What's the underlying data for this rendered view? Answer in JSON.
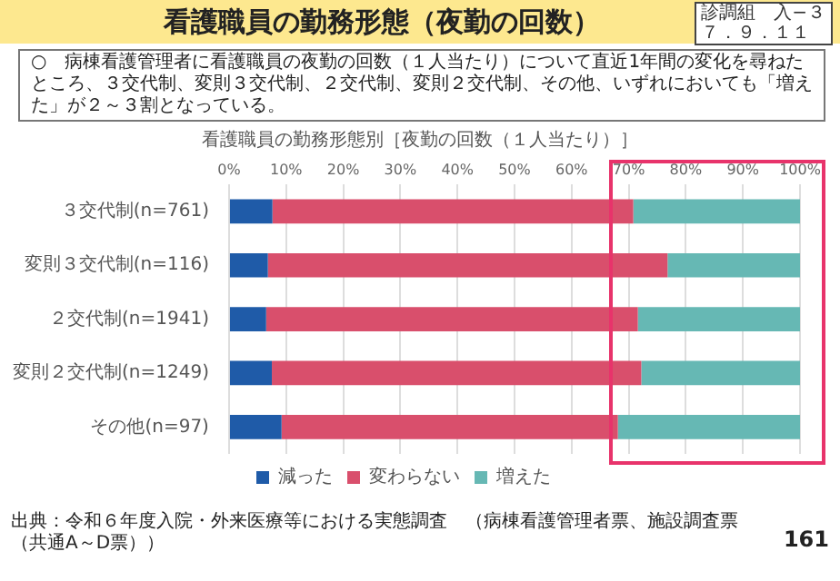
{
  "chart_data": {
    "type": "bar",
    "orientation": "horizontal",
    "stacked": true,
    "title": "看護職員の勤務形態（夜勤の回数）",
    "subtitle": "○　病棟看護管理者に看護職員の夜勤の回数（１人当たり）について直近1年間の変化を尋ねたところ、３交代制、変則３交代制、２交代制、変則２交代制、その他、いずれにおいても「増えた」が２～３割となっている。",
    "annotations": [
      "看護職員の勤務形態別［夜勤の回数（１人当たり）］",
      "診調組　入−３",
      "７．９．１１",
      "出典：令和６年度入院・外来医療等における実態調査　（病棟看護管理者票、施設調査票（共通A～D票））",
      "161"
    ],
    "categories": [
      "３交代制(n=761)",
      "変則３交代制(n=116)",
      "２交代制(n=1941)",
      "変則２交代制(n=1249)",
      "その他(n=97)"
    ],
    "series": [
      {
        "name": "減った",
        "color": "#1f5ba8",
        "values": [
          7.6,
          6.8,
          6.5,
          7.5,
          9.2
        ]
      },
      {
        "name": "変わらない",
        "color": "#d94f6c",
        "values": [
          63.2,
          70.0,
          65.1,
          64.7,
          58.9
        ]
      },
      {
        "name": "増えた",
        "color": "#66b8b4",
        "values": [
          29.2,
          23.2,
          28.4,
          27.8,
          31.9
        ]
      }
    ],
    "xlim": [
      0,
      100
    ],
    "xticks": [
      {
        "value": 0,
        "label": "0%"
      },
      {
        "value": 10,
        "label": "10%"
      },
      {
        "value": 20,
        "label": "20%"
      },
      {
        "value": 30,
        "label": "30%"
      },
      {
        "value": 40,
        "label": "40%"
      },
      {
        "value": 50,
        "label": "50%"
      },
      {
        "value": 60,
        "label": "60%"
      },
      {
        "value": 70,
        "label": "70%"
      },
      {
        "value": 80,
        "label": "80%"
      },
      {
        "value": 90,
        "label": "90%"
      },
      {
        "value": 100,
        "label": "100%"
      }
    ],
    "grid": "x",
    "legend": "bottom"
  }
}
